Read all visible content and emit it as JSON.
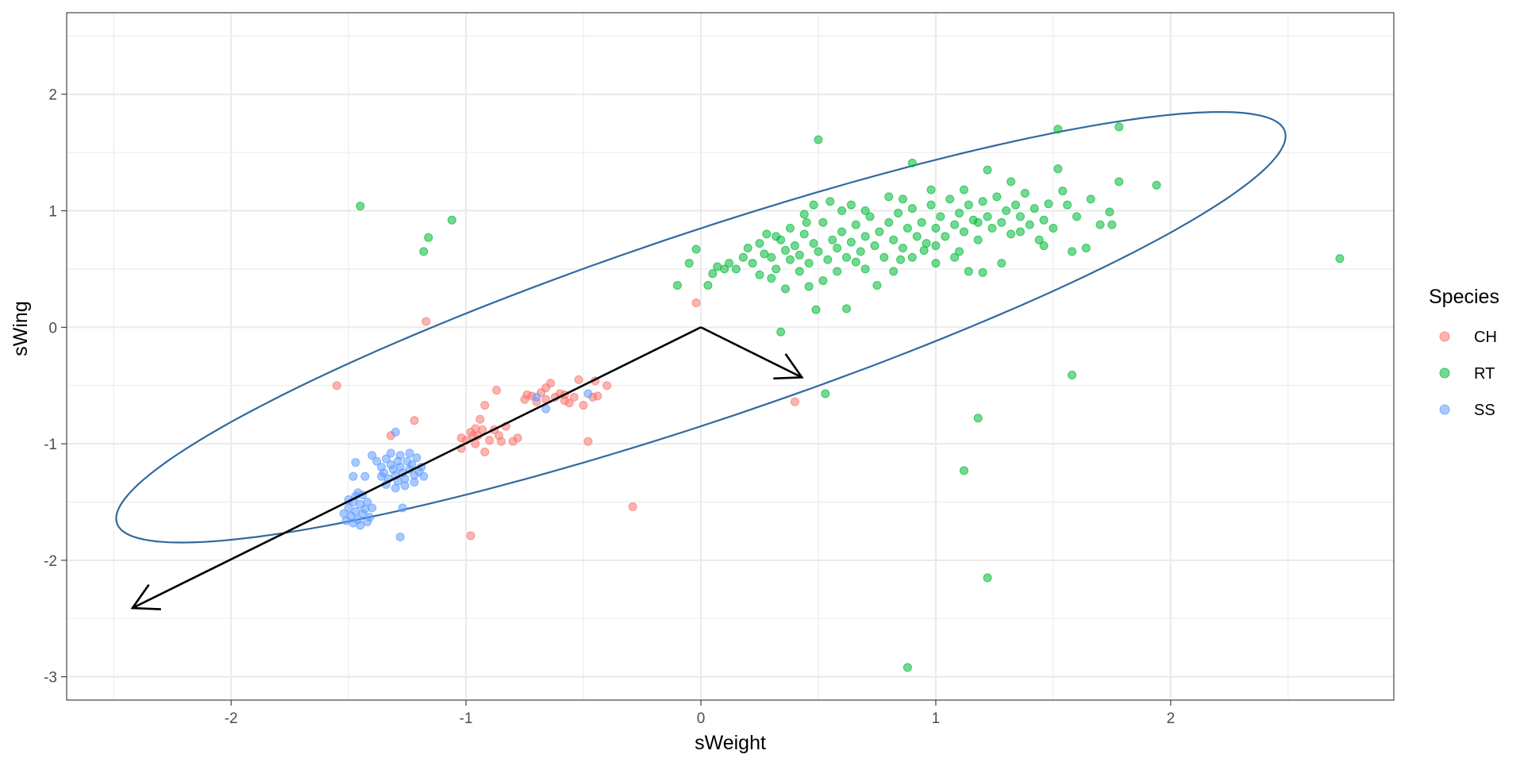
{
  "chart_data": {
    "type": "scatter",
    "title": "",
    "xlabel": "sWeight",
    "ylabel": "sWing",
    "xlim": [
      -2.7,
      2.95
    ],
    "ylim": [
      -3.2,
      2.7
    ],
    "x_ticks": [
      -2,
      -1,
      0,
      1,
      2
    ],
    "y_ticks": [
      -3,
      -2,
      -1,
      0,
      1,
      2
    ],
    "grid": true,
    "legend": {
      "title": "Species",
      "position": "right",
      "entries": [
        {
          "name": "CH",
          "color": "#F8766D"
        },
        {
          "name": "RT",
          "color": "#00BA38"
        },
        {
          "name": "SS",
          "color": "#619CFF"
        }
      ]
    },
    "series": [
      {
        "name": "CH",
        "color": "#F8766D",
        "points": [
          [
            -1.17,
            0.05
          ],
          [
            -1.55,
            -0.5
          ],
          [
            -1.22,
            -0.8
          ],
          [
            -1.32,
            -0.93
          ],
          [
            -0.02,
            0.21
          ],
          [
            0.4,
            -0.64
          ],
          [
            -0.29,
            -1.54
          ],
          [
            -0.98,
            -1.79
          ],
          [
            -0.48,
            -0.98
          ],
          [
            -1.02,
            -1.04
          ],
          [
            -1.0,
            -0.97
          ],
          [
            -0.98,
            -0.9
          ],
          [
            -0.96,
            -0.87
          ],
          [
            -0.95,
            -0.93
          ],
          [
            -0.93,
            -0.88
          ],
          [
            -0.92,
            -1.07
          ],
          [
            -0.9,
            -0.97
          ],
          [
            -0.88,
            -0.88
          ],
          [
            -0.86,
            -0.93
          ],
          [
            -0.85,
            -0.98
          ],
          [
            -0.83,
            -0.85
          ],
          [
            -0.8,
            -0.98
          ],
          [
            -0.78,
            -0.95
          ],
          [
            -0.94,
            -0.79
          ],
          [
            -0.92,
            -0.67
          ],
          [
            -0.87,
            -0.54
          ],
          [
            -0.75,
            -0.62
          ],
          [
            -0.72,
            -0.59
          ],
          [
            -0.7,
            -0.64
          ],
          [
            -0.68,
            -0.56
          ],
          [
            -0.66,
            -0.52
          ],
          [
            -0.64,
            -0.48
          ],
          [
            -0.62,
            -0.6
          ],
          [
            -0.6,
            -0.57
          ],
          [
            -0.58,
            -0.63
          ],
          [
            -0.56,
            -0.65
          ],
          [
            -0.54,
            -0.6
          ],
          [
            -0.52,
            -0.45
          ],
          [
            -0.5,
            -0.67
          ],
          [
            -0.46,
            -0.6
          ],
          [
            -0.44,
            -0.59
          ],
          [
            -0.45,
            -0.46
          ],
          [
            -0.4,
            -0.5
          ],
          [
            -0.58,
            -0.58
          ],
          [
            -0.66,
            -0.62
          ],
          [
            -0.74,
            -0.58
          ],
          [
            -0.97,
            -0.93
          ],
          [
            -1.02,
            -0.95
          ],
          [
            -0.96,
            -1.0
          ]
        ]
      },
      {
        "name": "RT",
        "color": "#00BA38",
        "points": [
          [
            -1.45,
            1.04
          ],
          [
            -1.16,
            0.77
          ],
          [
            -1.18,
            0.65
          ],
          [
            -1.06,
            0.92
          ],
          [
            0.5,
            1.61
          ],
          [
            0.9,
            1.41
          ],
          [
            1.52,
            1.7
          ],
          [
            1.78,
            1.72
          ],
          [
            1.94,
            1.22
          ],
          [
            1.78,
            1.25
          ],
          [
            2.72,
            0.59
          ],
          [
            0.34,
            -0.04
          ],
          [
            0.53,
            -0.57
          ],
          [
            1.58,
            -0.41
          ],
          [
            1.18,
            -0.78
          ],
          [
            1.12,
            -1.23
          ],
          [
            1.22,
            -2.15
          ],
          [
            0.88,
            -2.92
          ],
          [
            0.62,
            0.16
          ],
          [
            0.49,
            0.15
          ],
          [
            -0.1,
            0.36
          ],
          [
            -0.05,
            0.55
          ],
          [
            -0.02,
            0.67
          ],
          [
            0.03,
            0.36
          ],
          [
            0.05,
            0.46
          ],
          [
            0.07,
            0.52
          ],
          [
            0.1,
            0.5
          ],
          [
            0.12,
            0.55
          ],
          [
            0.15,
            0.5
          ],
          [
            0.18,
            0.6
          ],
          [
            0.2,
            0.68
          ],
          [
            0.22,
            0.55
          ],
          [
            0.25,
            0.72
          ],
          [
            0.27,
            0.63
          ],
          [
            0.3,
            0.6
          ],
          [
            0.32,
            0.5
          ],
          [
            0.34,
            0.75
          ],
          [
            0.36,
            0.66
          ],
          [
            0.38,
            0.58
          ],
          [
            0.4,
            0.7
          ],
          [
            0.42,
            0.62
          ],
          [
            0.44,
            0.8
          ],
          [
            0.46,
            0.55
          ],
          [
            0.48,
            0.72
          ],
          [
            0.5,
            0.65
          ],
          [
            0.52,
            0.9
          ],
          [
            0.54,
            0.58
          ],
          [
            0.56,
            0.75
          ],
          [
            0.58,
            0.68
          ],
          [
            0.6,
            0.82
          ],
          [
            0.62,
            0.6
          ],
          [
            0.64,
            0.73
          ],
          [
            0.66,
            0.88
          ],
          [
            0.68,
            0.65
          ],
          [
            0.7,
            0.78
          ],
          [
            0.72,
            0.95
          ],
          [
            0.74,
            0.7
          ],
          [
            0.76,
            0.82
          ],
          [
            0.78,
            0.6
          ],
          [
            0.8,
            0.9
          ],
          [
            0.82,
            0.75
          ],
          [
            0.84,
            0.98
          ],
          [
            0.86,
            0.68
          ],
          [
            0.88,
            0.85
          ],
          [
            0.9,
            1.02
          ],
          [
            0.92,
            0.78
          ],
          [
            0.94,
            0.9
          ],
          [
            0.96,
            0.72
          ],
          [
            0.98,
            1.05
          ],
          [
            1.0,
            0.85
          ],
          [
            1.02,
            0.95
          ],
          [
            1.04,
            0.78
          ],
          [
            1.06,
            1.1
          ],
          [
            1.08,
            0.88
          ],
          [
            1.1,
            0.98
          ],
          [
            1.12,
            0.82
          ],
          [
            1.14,
            1.05
          ],
          [
            1.16,
            0.92
          ],
          [
            1.18,
            0.75
          ],
          [
            1.2,
            1.08
          ],
          [
            1.22,
            0.95
          ],
          [
            1.24,
            0.85
          ],
          [
            1.26,
            1.12
          ],
          [
            1.28,
            0.9
          ],
          [
            1.3,
            1.0
          ],
          [
            1.32,
            0.8
          ],
          [
            1.34,
            1.05
          ],
          [
            1.36,
            0.95
          ],
          [
            1.38,
            1.15
          ],
          [
            1.4,
            0.88
          ],
          [
            1.42,
            1.02
          ],
          [
            1.44,
            0.75
          ],
          [
            1.46,
            0.92
          ],
          [
            1.48,
            1.06
          ],
          [
            1.5,
            0.85
          ],
          [
            1.52,
            1.36
          ],
          [
            1.54,
            1.17
          ],
          [
            1.56,
            1.05
          ],
          [
            1.58,
            0.65
          ],
          [
            1.6,
            0.95
          ],
          [
            1.64,
            0.68
          ],
          [
            1.66,
            1.1
          ],
          [
            1.7,
            0.88
          ],
          [
            1.74,
            0.99
          ],
          [
            1.75,
            0.88
          ],
          [
            1.32,
            1.25
          ],
          [
            1.22,
            1.35
          ],
          [
            1.12,
            1.18
          ],
          [
            0.98,
            1.18
          ],
          [
            0.86,
            1.1
          ],
          [
            0.7,
            1.0
          ],
          [
            0.6,
            1.0
          ],
          [
            0.55,
            1.08
          ],
          [
            0.48,
            1.05
          ],
          [
            0.45,
            0.9
          ],
          [
            0.42,
            0.48
          ],
          [
            0.3,
            0.42
          ],
          [
            0.25,
            0.45
          ],
          [
            0.46,
            0.35
          ],
          [
            0.52,
            0.4
          ],
          [
            0.36,
            0.33
          ],
          [
            0.75,
            0.36
          ],
          [
            0.82,
            0.48
          ],
          [
            1.0,
            0.55
          ],
          [
            1.08,
            0.6
          ],
          [
            1.14,
            0.48
          ],
          [
            1.2,
            0.47
          ],
          [
            1.28,
            0.55
          ],
          [
            0.85,
            0.58
          ],
          [
            0.95,
            0.66
          ],
          [
            0.7,
            0.5
          ],
          [
            0.58,
            0.48
          ],
          [
            0.66,
            0.56
          ],
          [
            0.38,
            0.85
          ],
          [
            0.32,
            0.78
          ],
          [
            0.28,
            0.8
          ],
          [
            0.44,
            0.97
          ],
          [
            0.64,
            1.05
          ],
          [
            0.8,
            1.12
          ],
          [
            0.9,
            0.6
          ],
          [
            1.0,
            0.7
          ],
          [
            1.1,
            0.65
          ],
          [
            1.18,
            0.9
          ],
          [
            1.36,
            0.82
          ],
          [
            1.46,
            0.7
          ]
        ]
      },
      {
        "name": "SS",
        "color": "#619CFF",
        "points": [
          [
            -1.3,
            -0.9
          ],
          [
            -1.28,
            -1.8
          ],
          [
            -1.27,
            -1.55
          ],
          [
            -1.48,
            -1.28
          ],
          [
            -1.43,
            -1.28
          ],
          [
            -1.47,
            -1.16
          ],
          [
            -1.4,
            -1.1
          ],
          [
            -0.7,
            -0.6
          ],
          [
            -0.66,
            -0.7
          ],
          [
            -0.48,
            -0.57
          ],
          [
            -1.38,
            -1.15
          ],
          [
            -1.36,
            -1.2
          ],
          [
            -1.35,
            -1.25
          ],
          [
            -1.34,
            -1.13
          ],
          [
            -1.33,
            -1.3
          ],
          [
            -1.32,
            -1.18
          ],
          [
            -1.31,
            -1.22
          ],
          [
            -1.3,
            -1.27
          ],
          [
            -1.29,
            -1.15
          ],
          [
            -1.28,
            -1.2
          ],
          [
            -1.27,
            -1.25
          ],
          [
            -1.26,
            -1.3
          ],
          [
            -1.25,
            -1.15
          ],
          [
            -1.24,
            -1.22
          ],
          [
            -1.23,
            -1.18
          ],
          [
            -1.22,
            -1.27
          ],
          [
            -1.21,
            -1.12
          ],
          [
            -1.2,
            -1.24
          ],
          [
            -1.19,
            -1.2
          ],
          [
            -1.18,
            -1.28
          ],
          [
            -1.34,
            -1.35
          ],
          [
            -1.3,
            -1.38
          ],
          [
            -1.26,
            -1.36
          ],
          [
            -1.22,
            -1.33
          ],
          [
            -1.32,
            -1.08
          ],
          [
            -1.28,
            -1.1
          ],
          [
            -1.24,
            -1.08
          ],
          [
            -1.36,
            -1.28
          ],
          [
            -1.29,
            -1.32
          ],
          [
            -1.52,
            -1.6
          ],
          [
            -1.5,
            -1.55
          ],
          [
            -1.49,
            -1.62
          ],
          [
            -1.48,
            -1.5
          ],
          [
            -1.47,
            -1.58
          ],
          [
            -1.46,
            -1.65
          ],
          [
            -1.45,
            -1.52
          ],
          [
            -1.44,
            -1.6
          ],
          [
            -1.43,
            -1.56
          ],
          [
            -1.42,
            -1.5
          ],
          [
            -1.41,
            -1.63
          ],
          [
            -1.5,
            -1.48
          ],
          [
            -1.47,
            -1.45
          ],
          [
            -1.44,
            -1.44
          ],
          [
            -1.48,
            -1.68
          ],
          [
            -1.45,
            -1.7
          ],
          [
            -1.42,
            -1.67
          ],
          [
            -1.51,
            -1.66
          ],
          [
            -1.4,
            -1.55
          ],
          [
            -1.46,
            -1.42
          ]
        ]
      }
    ],
    "ellipse": {
      "center": [
        0,
        0
      ],
      "angle_deg": 35.6,
      "semi_major": 3.02,
      "semi_minor": 0.7,
      "color": "#31699E"
    },
    "arrows": [
      {
        "from": [
          0,
          0
        ],
        "to": [
          -2.42,
          -2.41
        ]
      },
      {
        "from": [
          0,
          0
        ],
        "to": [
          0.43,
          -0.43
        ]
      }
    ]
  }
}
